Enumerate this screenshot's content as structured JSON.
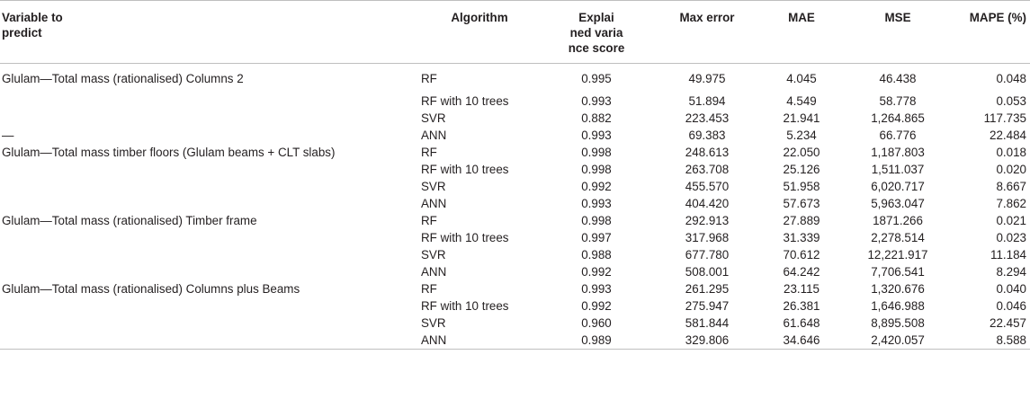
{
  "headers": {
    "variable": "Variable to predict",
    "algorithm": "Algorithm",
    "explained": "Explai ned varia nce score",
    "max_error": "Max error",
    "mae": "MAE",
    "mse": "MSE",
    "mape": "MAPE (%)"
  },
  "rows": [
    {
      "variable": "Glulam—Total mass (rationalised) Columns 2",
      "algorithm": "RF",
      "explained": "0.995",
      "max_error": "49.975",
      "mae": "4.045",
      "mse": "46.438",
      "mape": "0.048"
    },
    {
      "variable": "",
      "algorithm": "RF with 10 trees",
      "explained": "0.993",
      "max_error": "51.894",
      "mae": "4.549",
      "mse": "58.778",
      "mape": "0.053"
    },
    {
      "variable": "",
      "algorithm": "SVR",
      "explained": "0.882",
      "max_error": "223.453",
      "mae": "21.941",
      "mse": "1,264.865",
      "mape": "117.735"
    },
    {
      "variable": "—",
      "algorithm": "ANN",
      "explained": "0.993",
      "max_error": "69.383",
      "mae": "5.234",
      "mse": "66.776",
      "mape": "22.484"
    },
    {
      "variable": "Glulam—Total mass timber floors (Glulam beams + CLT slabs)",
      "algorithm": "RF",
      "explained": "0.998",
      "max_error": "248.613",
      "mae": "22.050",
      "mse": "1,187.803",
      "mape": "0.018"
    },
    {
      "variable": "",
      "algorithm": "RF with 10 trees",
      "explained": "0.998",
      "max_error": "263.708",
      "mae": "25.126",
      "mse": "1,511.037",
      "mape": "0.020"
    },
    {
      "variable": "",
      "algorithm": "SVR",
      "explained": "0.992",
      "max_error": "455.570",
      "mae": "51.958",
      "mse": "6,020.717",
      "mape": "8.667"
    },
    {
      "variable": "",
      "algorithm": "ANN",
      "explained": "0.993",
      "max_error": "404.420",
      "mae": "57.673",
      "mse": "5,963.047",
      "mape": "7.862"
    },
    {
      "variable": "Glulam—Total mass (rationalised) Timber frame",
      "algorithm": "RF",
      "explained": "0.998",
      "max_error": "292.913",
      "mae": "27.889",
      "mse": "1871.266",
      "mape": "0.021"
    },
    {
      "variable": "",
      "algorithm": "RF with 10 trees",
      "explained": "0.997",
      "max_error": "317.968",
      "mae": "31.339",
      "mse": "2,278.514",
      "mape": "0.023"
    },
    {
      "variable": "",
      "algorithm": "SVR",
      "explained": "0.988",
      "max_error": "677.780",
      "mae": "70.612",
      "mse": "12,221.917",
      "mape": "11.184"
    },
    {
      "variable": "",
      "algorithm": "ANN",
      "explained": "0.992",
      "max_error": "508.001",
      "mae": "64.242",
      "mse": "7,706.541",
      "mape": "8.294"
    },
    {
      "variable": "Glulam—Total mass (rationalised) Columns plus Beams",
      "algorithm": "RF",
      "explained": "0.993",
      "max_error": "261.295",
      "mae": "23.115",
      "mse": "1,320.676",
      "mape": "0.040"
    },
    {
      "variable": "",
      "algorithm": "RF with 10 trees",
      "explained": "0.992",
      "max_error": "275.947",
      "mae": "26.381",
      "mse": "1,646.988",
      "mape": "0.046"
    },
    {
      "variable": "",
      "algorithm": "SVR",
      "explained": "0.960",
      "max_error": "581.844",
      "mae": "61.648",
      "mse": "8,895.508",
      "mape": "22.457"
    },
    {
      "variable": "",
      "algorithm": "ANN",
      "explained": "0.989",
      "max_error": "329.806",
      "mae": "34.646",
      "mse": "2,420.057",
      "mape": "8.588"
    }
  ]
}
